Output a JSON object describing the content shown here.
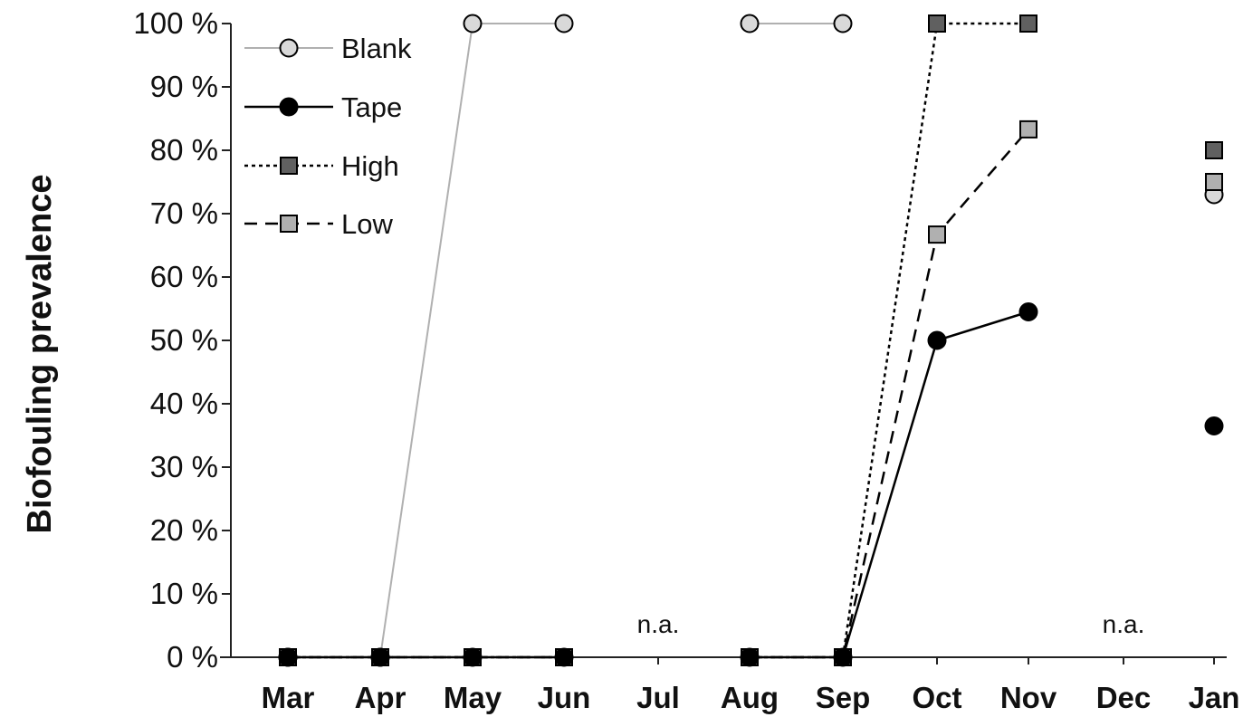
{
  "chart_data": {
    "type": "line",
    "ylabel": "Biofouling prevalence",
    "xlabel": "",
    "ylim": [
      0,
      100
    ],
    "yticks": [
      "0 %",
      "10 %",
      "20 %",
      "30 %",
      "40 %",
      "50 %",
      "60 %",
      "70 %",
      "80 %",
      "90 %",
      "100 %"
    ],
    "categories": [
      "Mar",
      "Apr",
      "May",
      "Jun",
      "Jul",
      "Aug",
      "Sep",
      "Oct",
      "Nov",
      "Dec",
      "Jan"
    ],
    "legend_position": "top-left",
    "grid": false,
    "series": [
      {
        "name": "Blank",
        "marker": "circle",
        "fill": "#d9d9d9",
        "line_color": "#b0b0b0",
        "line_style": "solid",
        "values": [
          0,
          0,
          100,
          100,
          null,
          100,
          100,
          null,
          null,
          null,
          73
        ]
      },
      {
        "name": "Tape",
        "marker": "circle",
        "fill": "#000000",
        "line_color": "#000000",
        "line_style": "solid",
        "values": [
          0,
          0,
          0,
          0,
          null,
          0,
          0,
          50,
          54.5,
          null,
          36.5
        ]
      },
      {
        "name": "High",
        "marker": "square",
        "fill": "#606060",
        "line_color": "#000000",
        "line_style": "dotted",
        "values": [
          0,
          0,
          0,
          0,
          null,
          0,
          0,
          100,
          100,
          null,
          80
        ]
      },
      {
        "name": "Low",
        "marker": "square",
        "fill": "#b0b0b0",
        "line_color": "#000000",
        "line_style": "dashed",
        "values": [
          0,
          0,
          0,
          0,
          null,
          0,
          0,
          66.7,
          83.3,
          null,
          75
        ]
      }
    ],
    "annotations": [
      {
        "text": "n.a.",
        "category": "Jul",
        "y": 5
      },
      {
        "text": "n.a.",
        "category": "Dec",
        "y": 5
      }
    ]
  }
}
